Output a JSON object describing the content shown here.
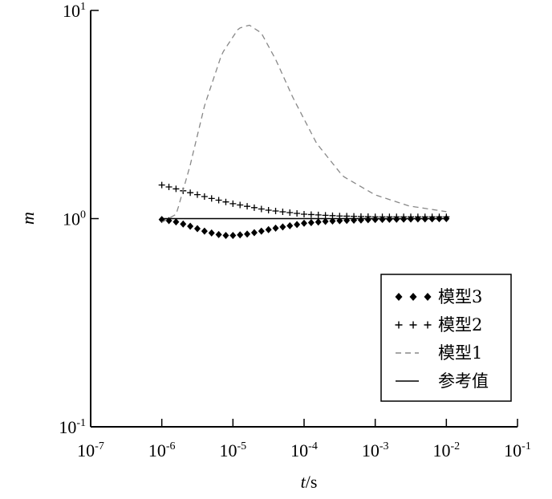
{
  "chart_data": {
    "type": "line",
    "xscale": "log",
    "yscale": "log",
    "xlim": [
      1e-07,
      0.1
    ],
    "ylim": [
      0.1,
      10
    ],
    "xticks": [
      {
        "base": "10",
        "exp": "-7"
      },
      {
        "base": "10",
        "exp": "-6"
      },
      {
        "base": "10",
        "exp": "-5"
      },
      {
        "base": "10",
        "exp": "-4"
      },
      {
        "base": "10",
        "exp": "-3"
      },
      {
        "base": "10",
        "exp": "-2"
      },
      {
        "base": "10",
        "exp": "-1"
      }
    ],
    "yticks": [
      {
        "base": "10",
        "exp": "1",
        "value": 10
      },
      {
        "base": "10",
        "exp": "0",
        "value": 1
      },
      {
        "base": "10",
        "exp": "-1",
        "value": 0.1
      }
    ],
    "xlabel": {
      "var": "t",
      "unit": "/s"
    },
    "ylabel": "m",
    "legend_position": "bottom-right",
    "series": [
      {
        "name": "模型3",
        "marker": "diamond",
        "line": "none",
        "color": "#000000",
        "x": [
          1e-06,
          1.5e-06,
          2.5e-06,
          4e-06,
          6e-06,
          8e-06,
          1e-05,
          1.5e-05,
          2.5e-05,
          4e-05,
          7e-05,
          0.0001,
          0.0002,
          0.0004,
          0.001,
          0.003,
          0.01
        ],
        "y": [
          0.99,
          0.97,
          0.92,
          0.87,
          0.84,
          0.83,
          0.83,
          0.84,
          0.87,
          0.9,
          0.93,
          0.95,
          0.97,
          0.98,
          0.99,
          0.995,
          1.0
        ]
      },
      {
        "name": "模型2",
        "marker": "plus",
        "line": "none",
        "color": "#000000",
        "x": [
          1e-06,
          2e-06,
          5e-06,
          1e-05,
          3e-05,
          0.0001,
          0.0003,
          0.001,
          0.003,
          0.01
        ],
        "y": [
          1.45,
          1.36,
          1.25,
          1.18,
          1.1,
          1.05,
          1.03,
          1.02,
          1.02,
          1.02
        ]
      },
      {
        "name": "模型1",
        "marker": "none",
        "line": "dashed",
        "color": "#888888",
        "x": [
          1e-06,
          1.6e-06,
          2.5e-06,
          4e-06,
          7e-06,
          1.2e-05,
          1.7e-05,
          2.5e-05,
          4e-05,
          7e-05,
          0.00015,
          0.00035,
          0.001,
          0.003,
          0.01
        ],
        "y": [
          0.96,
          1.05,
          1.8,
          3.5,
          6.2,
          8.2,
          8.5,
          7.8,
          5.8,
          3.8,
          2.3,
          1.6,
          1.3,
          1.15,
          1.08
        ]
      },
      {
        "name": "参考值",
        "marker": "none",
        "line": "solid",
        "color": "#000000",
        "x": [
          1e-06,
          0.01
        ],
        "y": [
          1.0,
          1.0
        ]
      }
    ]
  }
}
